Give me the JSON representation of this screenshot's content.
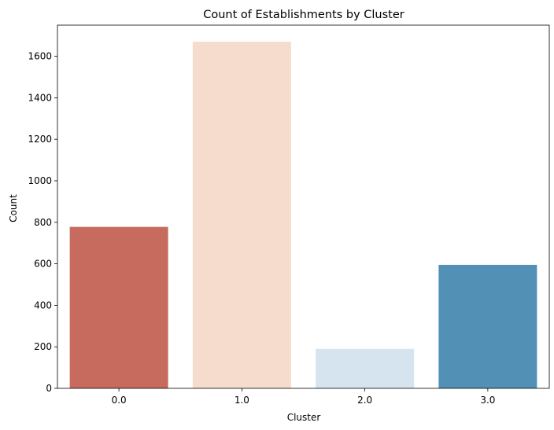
{
  "chart_data": {
    "type": "bar",
    "title": "Count of Establishments by Cluster",
    "xlabel": "Cluster",
    "ylabel": "Count",
    "categories": [
      "0.0",
      "1.0",
      "2.0",
      "3.0"
    ],
    "values": [
      778,
      1670,
      190,
      595
    ],
    "colors": [
      "#c76b5e",
      "#f6dccd",
      "#d5e4ee",
      "#5290b6"
    ],
    "ylim": [
      0,
      1750
    ],
    "yticks": [
      0,
      200,
      400,
      600,
      800,
      1000,
      1200,
      1400,
      1600
    ],
    "grid": false,
    "legend": "none"
  }
}
